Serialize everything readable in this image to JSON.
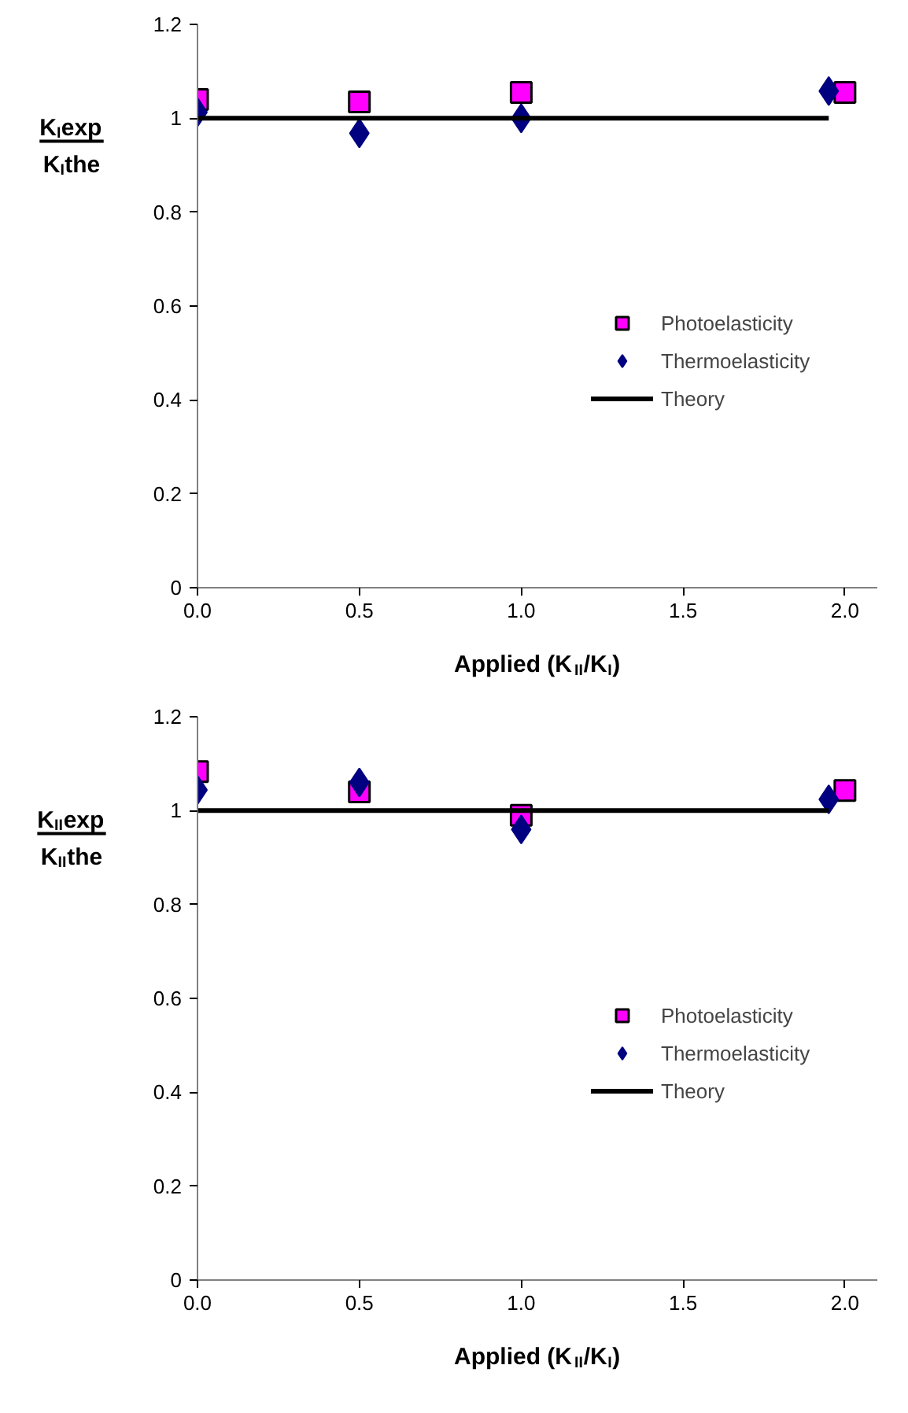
{
  "chart_data": [
    {
      "type": "scatter",
      "xlabel": "Applied (K$_{II}$/K$_{I}$)",
      "ylabel": "K$_{I}$exp\nK$_{I}$the",
      "xlim": [
        0,
        2.1
      ],
      "xticks": [
        {
          "value": 0,
          "label": "0.0"
        },
        {
          "value": 0.5,
          "label": "0.5"
        },
        {
          "value": 1,
          "label": "1.0"
        },
        {
          "value": 1.5,
          "label": "1.5"
        },
        {
          "value": 2,
          "label": "2.0"
        }
      ],
      "ylim": [
        0,
        1.2
      ],
      "yticks": [
        0,
        0.2,
        0.4,
        0.6,
        0.8,
        1,
        1.2
      ],
      "grid": false,
      "legend": "right",
      "series": [
        {
          "name": "Photoelasticity",
          "marker": "square",
          "color": "#ff00ff",
          "x": [
            0,
            0.5,
            1,
            2
          ],
          "values": [
            1.04,
            1.035,
            1.055,
            1.055
          ]
        },
        {
          "name": "Thermoelasticity",
          "marker": "diamond",
          "color": "#000080",
          "x": [
            0,
            0.5,
            1,
            1.95
          ],
          "values": [
            1.013,
            0.968,
            1.0,
            1.058
          ]
        },
        {
          "name": "Theory",
          "type": "line",
          "line_style": "solid",
          "color": "#000000",
          "x": [
            0,
            1.95
          ],
          "values": [
            1,
            1
          ]
        }
      ]
    },
    {
      "type": "scatter",
      "xlabel": "Applied (K$_{II}$/K$_{I}$)",
      "ylabel": "K$_{II}$exp\nK$_{II}$the",
      "xlim": [
        0,
        2.1
      ],
      "xticks": [
        {
          "value": 0,
          "label": "0.0"
        },
        {
          "value": 0.5,
          "label": "0.5"
        },
        {
          "value": 1,
          "label": "1.0"
        },
        {
          "value": 1.5,
          "label": "1.5"
        },
        {
          "value": 2,
          "label": "2.0"
        }
      ],
      "ylim": [
        0,
        1.2
      ],
      "yticks": [
        0,
        0.2,
        0.4,
        0.6,
        0.8,
        1,
        1.2
      ],
      "grid": false,
      "legend": "right",
      "series": [
        {
          "name": "Photoelasticity",
          "marker": "square",
          "color": "#ff00ff",
          "x": [
            0,
            0.5,
            1,
            2
          ],
          "values": [
            1.083,
            1.04,
            0.99,
            1.043
          ]
        },
        {
          "name": "Thermoelasticity",
          "marker": "diamond",
          "color": "#000080",
          "x": [
            0,
            0.5,
            1,
            1.95
          ],
          "values": [
            1.044,
            1.06,
            0.96,
            1.024
          ]
        },
        {
          "name": "Theory",
          "type": "line",
          "line_style": "solid",
          "color": "#000000",
          "x": [
            0,
            1.95
          ],
          "values": [
            1,
            1
          ]
        }
      ]
    }
  ]
}
